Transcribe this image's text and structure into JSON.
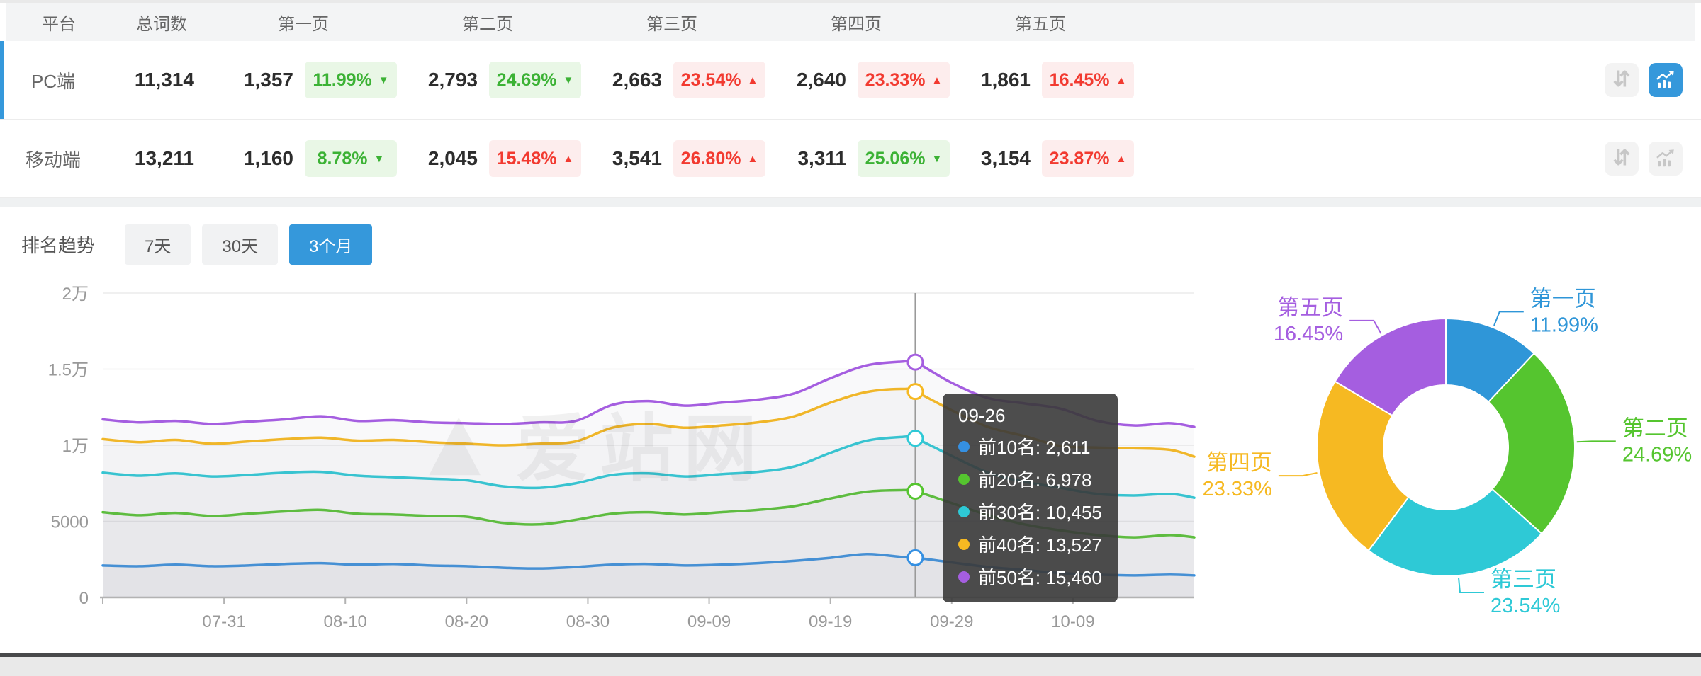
{
  "table": {
    "headers": [
      "平台",
      "总词数",
      "第一页",
      "第二页",
      "第三页",
      "第四页",
      "第五页"
    ],
    "rows": [
      {
        "platform": "PC端",
        "selected": true,
        "total": "11,314",
        "pages": [
          {
            "count": "1,357",
            "pct": "11.99%",
            "dir": "down",
            "tone": "green"
          },
          {
            "count": "2,793",
            "pct": "24.69%",
            "dir": "down",
            "tone": "green"
          },
          {
            "count": "2,663",
            "pct": "23.54%",
            "dir": "up",
            "tone": "red"
          },
          {
            "count": "2,640",
            "pct": "23.33%",
            "dir": "up",
            "tone": "red"
          },
          {
            "count": "1,861",
            "pct": "16.45%",
            "dir": "up",
            "tone": "red"
          }
        ],
        "actions": {
          "sort_active": false,
          "chart_active": true
        }
      },
      {
        "platform": "移动端",
        "selected": false,
        "total": "13,211",
        "pages": [
          {
            "count": "1,160",
            "pct": "8.78%",
            "dir": "down",
            "tone": "green"
          },
          {
            "count": "2,045",
            "pct": "15.48%",
            "dir": "up",
            "tone": "red"
          },
          {
            "count": "3,541",
            "pct": "26.80%",
            "dir": "up",
            "tone": "red"
          },
          {
            "count": "3,311",
            "pct": "25.06%",
            "dir": "down",
            "tone": "green"
          },
          {
            "count": "3,154",
            "pct": "23.87%",
            "dir": "up",
            "tone": "red"
          }
        ],
        "actions": {
          "sort_active": false,
          "chart_active": false
        }
      }
    ]
  },
  "trend": {
    "title": "排名趋势",
    "tabs": [
      {
        "label": "7天",
        "active": false
      },
      {
        "label": "30天",
        "active": false
      },
      {
        "label": "3个月",
        "active": true
      }
    ]
  },
  "watermark": "爱站网",
  "colors": {
    "accent": "#3598db",
    "rise_red": "#f23a30",
    "fall_green": "#3cb235"
  },
  "tooltip": {
    "title": "09-26",
    "rows": [
      {
        "label": "前10名",
        "value": "2,611",
        "color": "#3590e2"
      },
      {
        "label": "前20名",
        "value": "6,978",
        "color": "#55c52f"
      },
      {
        "label": "前30名",
        "value": "10,455",
        "color": "#2ec9d6"
      },
      {
        "label": "前40名",
        "value": "13,527",
        "color": "#f6b922"
      },
      {
        "label": "前50名",
        "value": "15,460",
        "color": "#a55ee0"
      }
    ]
  },
  "chart_data": [
    {
      "type": "line",
      "title": "排名趋势 (3个月)",
      "x_start_date": "07-21",
      "x_days": [
        0,
        3,
        6,
        9,
        12,
        15,
        18,
        21,
        24,
        27,
        30,
        33,
        36,
        39,
        42,
        45,
        48,
        51,
        54,
        57,
        60,
        63,
        66,
        67,
        70,
        73,
        76,
        79,
        82,
        85,
        88,
        90
      ],
      "x_tick_days": [
        10,
        20,
        30,
        40,
        50,
        60,
        70,
        80
      ],
      "x_tick_labels": [
        "07-31",
        "08-10",
        "08-20",
        "08-30",
        "09-09",
        "09-19",
        "09-29",
        "10-09"
      ],
      "xlabel": "",
      "ylabel": "",
      "ylim": [
        0,
        20000
      ],
      "y_ticks": [
        0,
        5000,
        10000,
        15000,
        20000
      ],
      "y_tick_labels": [
        "0",
        "5000",
        "1万",
        "1.5万",
        "2万"
      ],
      "grid": true,
      "legend_position": "none",
      "crosshair": {
        "day": 67,
        "date": "09-26",
        "values": [
          2611,
          6978,
          10455,
          13527,
          15460
        ]
      },
      "series": [
        {
          "name": "前10名",
          "color": "#3590e2",
          "values": [
            2100,
            2050,
            2150,
            2050,
            2100,
            2200,
            2250,
            2150,
            2200,
            2100,
            2050,
            1950,
            1900,
            2000,
            2150,
            2200,
            2100,
            2150,
            2250,
            2400,
            2600,
            2850,
            2650,
            2611,
            2300,
            2000,
            1800,
            1600,
            1500,
            1450,
            1500,
            1450
          ]
        },
        {
          "name": "前20名",
          "color": "#55c52f",
          "values": [
            5600,
            5400,
            5550,
            5350,
            5500,
            5650,
            5750,
            5500,
            5450,
            5350,
            5300,
            4900,
            4800,
            5100,
            5500,
            5600,
            5450,
            5600,
            5750,
            6000,
            6500,
            6950,
            7050,
            6978,
            6200,
            5400,
            4800,
            4400,
            4100,
            3950,
            4100,
            3950
          ]
        },
        {
          "name": "前30名",
          "color": "#2ec9d6",
          "values": [
            8200,
            8000,
            8150,
            7950,
            8050,
            8200,
            8250,
            8000,
            7900,
            7800,
            7700,
            7300,
            7200,
            7500,
            8050,
            8150,
            7950,
            8100,
            8250,
            8600,
            9500,
            10300,
            10550,
            10455,
            9300,
            8200,
            7600,
            7200,
            6800,
            6700,
            6800,
            6550
          ]
        },
        {
          "name": "前40名",
          "color": "#f6b922",
          "values": [
            10400,
            10200,
            10350,
            10100,
            10250,
            10400,
            10500,
            10300,
            10350,
            10200,
            10100,
            10000,
            10100,
            10250,
            11150,
            11400,
            11150,
            11300,
            11500,
            11900,
            12800,
            13500,
            13700,
            13527,
            12300,
            11200,
            10600,
            9950,
            9850,
            9800,
            9700,
            9250
          ]
        },
        {
          "name": "前50名",
          "color": "#a55ee0",
          "values": [
            11700,
            11500,
            11600,
            11400,
            11550,
            11700,
            11900,
            11600,
            11650,
            11500,
            11450,
            11400,
            11500,
            11600,
            12650,
            12900,
            12600,
            12800,
            13000,
            13400,
            14400,
            15250,
            15500,
            15460,
            14100,
            13100,
            12750,
            12400,
            11600,
            11300,
            11450,
            11200
          ]
        }
      ]
    },
    {
      "type": "pie",
      "donut": true,
      "start_angle_deg": -90,
      "clockwise": true,
      "label_format": "name + percent",
      "slices": [
        {
          "label": "第一页",
          "value": 11.99,
          "color": "#2f96d8"
        },
        {
          "label": "第二页",
          "value": 24.69,
          "color": "#55c52f"
        },
        {
          "label": "第三页",
          "value": 23.54,
          "color": "#2ec9d6"
        },
        {
          "label": "第四页",
          "value": 23.33,
          "color": "#f6b922"
        },
        {
          "label": "第五页",
          "value": 16.45,
          "color": "#a55ee0"
        }
      ]
    }
  ]
}
